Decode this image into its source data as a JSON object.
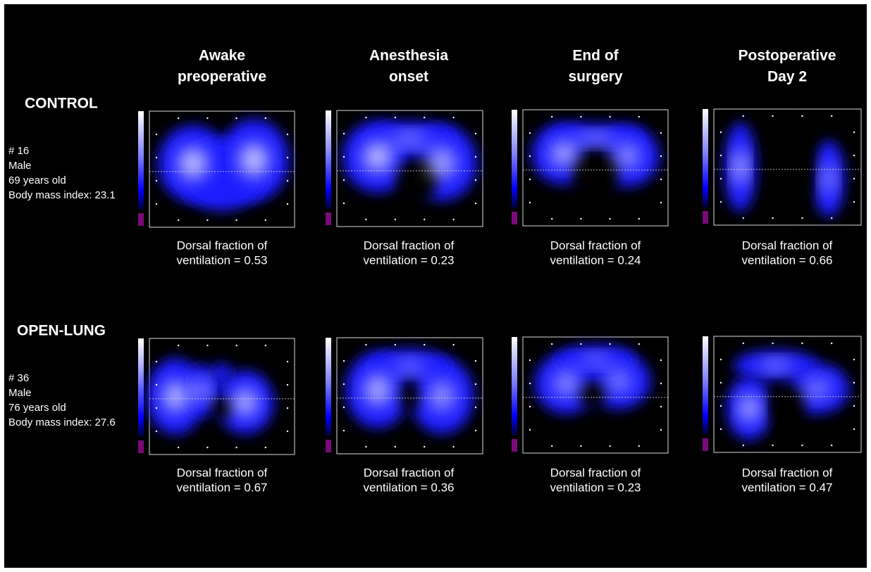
{
  "columns": [
    {
      "title": [
        "Awake",
        "preoperative"
      ]
    },
    {
      "title": [
        "Anesthesia",
        "onset"
      ]
    },
    {
      "title": [
        "End of",
        "surgery"
      ]
    },
    {
      "title": [
        "Postoperative",
        "Day 2"
      ]
    }
  ],
  "rows": [
    {
      "label": "CONTROL",
      "info": [
        "# 16",
        "Male",
        "69 years old",
        "Body mass index: 23.1"
      ],
      "cells": [
        {
          "caption": [
            "Dorsal fraction of",
            "ventilation = 0.53"
          ]
        },
        {
          "caption": [
            "Dorsal fraction of",
            "ventilation = 0.23"
          ]
        },
        {
          "caption": [
            "Dorsal fraction of",
            "ventilation = 0.24"
          ]
        },
        {
          "caption": [
            "Dorsal fraction of",
            "ventilation = 0.66"
          ]
        }
      ]
    },
    {
      "label": "OPEN-LUNG",
      "info": [
        "# 36",
        "Male",
        "76 years old",
        "Body mass index: 27.6"
      ],
      "cells": [
        {
          "caption": [
            "Dorsal fraction of",
            "ventilation = 0.67"
          ]
        },
        {
          "caption": [
            "Dorsal fraction of",
            "ventilation = 0.36"
          ]
        },
        {
          "caption": [
            "Dorsal fraction of",
            "ventilation = 0.23"
          ]
        },
        {
          "caption": [
            "Dorsal fraction of",
            "ventilation = 0.47"
          ]
        }
      ]
    }
  ]
}
